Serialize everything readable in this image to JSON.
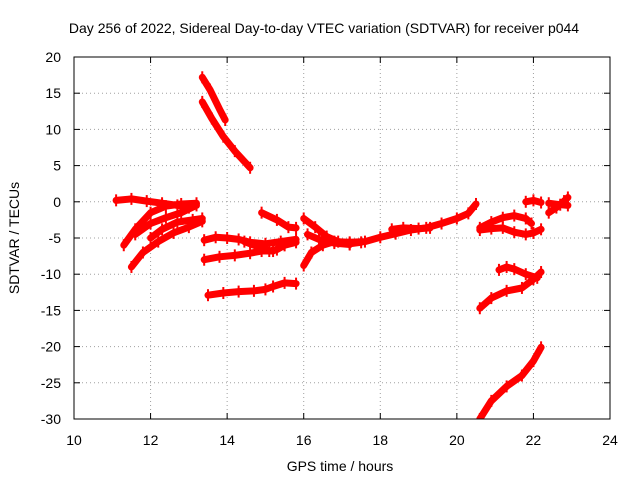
{
  "chart_data": {
    "type": "scatter",
    "title": "Day 256 of 2022, Sidereal Day-to-day VTEC variation (SDTVAR) for receiver p044",
    "xlabel": "GPS time / hours",
    "ylabel": "SDTVAR / TECUs",
    "xlim": [
      10,
      24
    ],
    "ylim": [
      -30,
      20
    ],
    "xticks": [
      10,
      12,
      14,
      16,
      18,
      20,
      22,
      24
    ],
    "yticks": [
      -30,
      -25,
      -20,
      -15,
      -10,
      -5,
      0,
      5,
      10,
      15,
      20
    ],
    "grid": true,
    "legend": "none",
    "color": "#ff0000",
    "series": [
      {
        "points": [
          [
            13.35,
            17.2
          ],
          [
            13.55,
            15.5
          ],
          [
            13.8,
            12.8
          ],
          [
            13.95,
            11.3
          ]
        ]
      },
      {
        "points": [
          [
            13.35,
            13.8
          ],
          [
            13.6,
            11.5
          ],
          [
            13.9,
            9.0
          ],
          [
            14.2,
            7.0
          ],
          [
            14.6,
            4.7
          ]
        ]
      },
      {
        "points": [
          [
            11.1,
            0.2
          ],
          [
            11.5,
            0.4
          ],
          [
            11.9,
            0.1
          ],
          [
            12.3,
            -0.2
          ],
          [
            12.7,
            -0.5
          ],
          [
            13.0,
            -0.8
          ]
        ]
      },
      {
        "points": [
          [
            11.3,
            -6.0
          ],
          [
            11.6,
            -3.8
          ],
          [
            12.0,
            -1.5
          ],
          [
            12.4,
            -0.6
          ],
          [
            12.8,
            -0.3
          ],
          [
            13.2,
            -0.2
          ]
        ]
      },
      {
        "points": [
          [
            11.5,
            -9.0
          ],
          [
            11.8,
            -7.0
          ],
          [
            12.2,
            -5.5
          ],
          [
            12.6,
            -4.3
          ],
          [
            13.0,
            -3.5
          ],
          [
            13.35,
            -2.7
          ]
        ]
      },
      {
        "points": [
          [
            11.6,
            -4.5
          ],
          [
            12.0,
            -3.0
          ],
          [
            12.4,
            -2.2
          ],
          [
            12.8,
            -1.5
          ],
          [
            13.2,
            -0.5
          ]
        ]
      },
      {
        "points": [
          [
            12.0,
            -5.0
          ],
          [
            12.3,
            -3.8
          ],
          [
            12.7,
            -2.8
          ],
          [
            13.1,
            -2.5
          ],
          [
            13.35,
            -2.3
          ]
        ]
      },
      {
        "points": [
          [
            13.4,
            -5.3
          ],
          [
            13.7,
            -4.9
          ],
          [
            14.0,
            -5.0
          ],
          [
            14.3,
            -5.2
          ],
          [
            14.6,
            -5.6
          ],
          [
            15.0,
            -5.8
          ],
          [
            15.4,
            -5.5
          ],
          [
            15.8,
            -5.2
          ]
        ]
      },
      {
        "points": [
          [
            13.4,
            -8.0
          ],
          [
            13.8,
            -7.6
          ],
          [
            14.2,
            -7.4
          ],
          [
            14.6,
            -7.1
          ],
          [
            14.9,
            -6.8
          ],
          [
            15.2,
            -6.8
          ],
          [
            15.5,
            -6.0
          ],
          [
            15.8,
            -5.6
          ]
        ]
      },
      {
        "points": [
          [
            14.45,
            -5.5
          ],
          [
            14.8,
            -6.2
          ],
          [
            15.1,
            -6.8
          ],
          [
            15.3,
            -6.6
          ],
          [
            15.5,
            -6.0
          ]
        ]
      },
      {
        "points": [
          [
            13.5,
            -12.9
          ],
          [
            13.9,
            -12.6
          ],
          [
            14.3,
            -12.4
          ],
          [
            14.7,
            -12.3
          ],
          [
            15.0,
            -12.1
          ],
          [
            15.2,
            -11.7
          ],
          [
            15.5,
            -11.2
          ],
          [
            15.8,
            -11.3
          ]
        ]
      },
      {
        "points": [
          [
            14.9,
            -1.5
          ],
          [
            15.3,
            -2.5
          ],
          [
            15.6,
            -3.5
          ],
          [
            15.8,
            -3.6
          ]
        ]
      },
      {
        "points": [
          [
            16.0,
            -8.8
          ],
          [
            16.2,
            -7.0
          ],
          [
            16.5,
            -6.0
          ],
          [
            16.8,
            -5.5
          ],
          [
            17.2,
            -5.6
          ],
          [
            17.6,
            -5.5
          ],
          [
            18.0,
            -4.9
          ],
          [
            18.4,
            -4.4
          ],
          [
            18.8,
            -3.9
          ],
          [
            19.2,
            -3.6
          ],
          [
            19.6,
            -3.0
          ],
          [
            20.0,
            -2.3
          ],
          [
            20.3,
            -1.6
          ],
          [
            20.5,
            -0.3
          ]
        ]
      },
      {
        "points": [
          [
            16.0,
            -2.3
          ],
          [
            16.3,
            -3.5
          ],
          [
            16.6,
            -4.8
          ],
          [
            16.9,
            -5.5
          ],
          [
            17.2,
            -5.8
          ],
          [
            17.5,
            -5.6
          ]
        ]
      },
      {
        "points": [
          [
            16.1,
            -4.5
          ],
          [
            16.4,
            -5.2
          ],
          [
            16.8,
            -5.7
          ],
          [
            17.2,
            -5.9
          ]
        ]
      },
      {
        "points": [
          [
            18.3,
            -3.8
          ],
          [
            18.6,
            -3.6
          ],
          [
            19.0,
            -3.7
          ],
          [
            19.3,
            -3.6
          ]
        ]
      },
      {
        "points": [
          [
            20.6,
            -3.6
          ],
          [
            20.9,
            -2.8
          ],
          [
            21.2,
            -2.2
          ],
          [
            21.5,
            -1.9
          ],
          [
            21.8,
            -2.3
          ],
          [
            21.95,
            -3.0
          ]
        ]
      },
      {
        "points": [
          [
            20.6,
            -3.9
          ],
          [
            20.9,
            -3.7
          ],
          [
            21.2,
            -3.6
          ],
          [
            21.5,
            -4.2
          ],
          [
            21.8,
            -4.5
          ],
          [
            22.0,
            -4.3
          ],
          [
            22.2,
            -3.8
          ]
        ]
      },
      {
        "points": [
          [
            21.8,
            0.0
          ],
          [
            22.0,
            0.2
          ],
          [
            22.2,
            -0.1
          ]
        ]
      },
      {
        "points": [
          [
            22.4,
            -1.5
          ],
          [
            22.6,
            -0.8
          ],
          [
            22.8,
            0.1
          ],
          [
            22.9,
            0.6
          ]
        ]
      },
      {
        "points": [
          [
            22.4,
            -0.2
          ],
          [
            22.7,
            -0.4
          ],
          [
            22.9,
            -0.5
          ]
        ]
      },
      {
        "points": [
          [
            20.6,
            -14.7
          ],
          [
            20.9,
            -13.3
          ],
          [
            21.3,
            -12.3
          ],
          [
            21.7,
            -11.9
          ],
          [
            22.0,
            -10.7
          ],
          [
            22.2,
            -9.7
          ]
        ]
      },
      {
        "points": [
          [
            21.1,
            -9.4
          ],
          [
            21.3,
            -9.0
          ],
          [
            21.5,
            -9.3
          ],
          [
            21.8,
            -10.0
          ],
          [
            22.1,
            -10.5
          ]
        ]
      },
      {
        "points": [
          [
            20.6,
            -30.0
          ],
          [
            20.9,
            -27.5
          ],
          [
            21.3,
            -25.5
          ],
          [
            21.7,
            -24.0
          ],
          [
            22.0,
            -22.0
          ],
          [
            22.2,
            -20.1
          ]
        ]
      }
    ]
  }
}
